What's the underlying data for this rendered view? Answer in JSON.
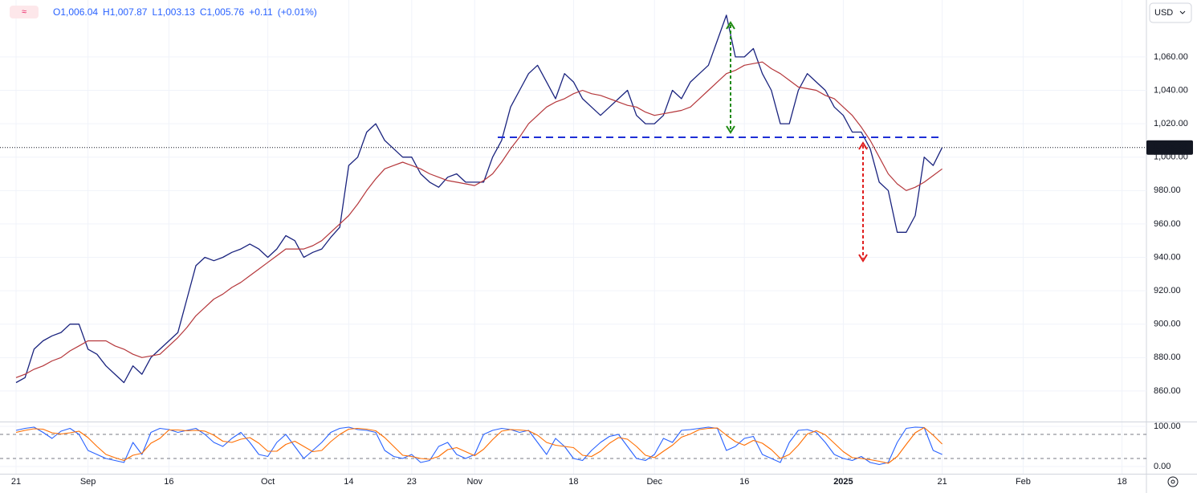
{
  "chart_data": [
    {
      "type": "line",
      "legend": {
        "open": "O1,006.04",
        "high": "H1,007.87",
        "low": "L1,003.13",
        "close": "C1,005.76",
        "change": "+0.11",
        "change_pct": "(+0.01%)"
      },
      "currency": "USD",
      "last_price": {
        "value": 1005.76,
        "label": "1,005.76"
      },
      "xlim": [
        -1.786,
        125.71
      ],
      "ylim": [
        841.7,
        1094.1
      ],
      "yticks": [
        {
          "value": 860,
          "label": "860.00"
        },
        {
          "value": 880,
          "label": "880.00"
        },
        {
          "value": 900,
          "label": "900.00"
        },
        {
          "value": 920,
          "label": "920.00"
        },
        {
          "value": 940,
          "label": "940.00"
        },
        {
          "value": 960,
          "label": "960.00"
        },
        {
          "value": 980,
          "label": "980.00"
        },
        {
          "value": 1000,
          "label": "1,000.00"
        },
        {
          "value": 1020,
          "label": "1,020.00"
        },
        {
          "value": 1040,
          "label": "1,040.00"
        },
        {
          "value": 1060,
          "label": "1,060.00"
        }
      ],
      "grid": true,
      "series": [
        {
          "color": "#1a237e",
          "width": 1.3,
          "values": [
            865,
            868,
            885,
            890,
            893,
            895,
            900,
            900,
            885,
            882,
            875,
            870,
            865,
            875,
            870,
            880,
            885,
            890,
            895,
            915,
            935,
            940,
            938,
            940,
            943,
            945,
            948,
            945,
            940,
            945,
            953,
            950,
            940,
            943,
            945,
            952,
            958,
            995,
            1000,
            1015,
            1020,
            1010,
            1005,
            1000,
            1000,
            990,
            985,
            982,
            988,
            990,
            985,
            985,
            985,
            1000,
            1010,
            1030,
            1040,
            1050,
            1055,
            1045,
            1035,
            1050,
            1045,
            1035,
            1030,
            1025,
            1030,
            1035,
            1040,
            1025,
            1020,
            1020,
            1025,
            1040,
            1035,
            1045,
            1050,
            1055,
            1070,
            1085,
            1060,
            1060,
            1065,
            1050,
            1040,
            1020,
            1020,
            1040,
            1050,
            1045,
            1040,
            1030,
            1025,
            1015,
            1015,
            1005,
            985,
            980,
            955,
            955,
            965,
            1000,
            995,
            1005.76
          ]
        },
        {
          "color": "#b5373b",
          "width": 1.2,
          "values": [
            868,
            870,
            873,
            875,
            878,
            880,
            884,
            887,
            890,
            890,
            890,
            887,
            885,
            882,
            880,
            881,
            882,
            887,
            892,
            898,
            905,
            910,
            915,
            918,
            922,
            925,
            929,
            933,
            937,
            941,
            945,
            945,
            945,
            947,
            950,
            955,
            960,
            965,
            972,
            980,
            987,
            993,
            995,
            997,
            995,
            993,
            990,
            988,
            986,
            985,
            984,
            983,
            986,
            990,
            997,
            1005,
            1012,
            1020,
            1025,
            1030,
            1033,
            1035,
            1038,
            1040,
            1038,
            1037,
            1035,
            1033,
            1031,
            1030,
            1027,
            1025,
            1026,
            1027,
            1028,
            1030,
            1035,
            1040,
            1045,
            1050,
            1052,
            1055,
            1056,
            1057,
            1053,
            1050,
            1046,
            1042,
            1041,
            1040,
            1037,
            1035,
            1030,
            1025,
            1018,
            1010,
            1000,
            990,
            984,
            980,
            982,
            985,
            989,
            993
          ]
        }
      ]
    },
    {
      "type": "line",
      "xlim": [
        -1.786,
        125.71
      ],
      "xticks": [
        {
          "value": 0,
          "label": "21"
        },
        {
          "value": 8,
          "label": "Sep"
        },
        {
          "value": 17,
          "label": "16"
        },
        {
          "value": 28,
          "label": "Oct"
        },
        {
          "value": 37,
          "label": "14"
        },
        {
          "value": 44,
          "label": "23"
        },
        {
          "value": 51,
          "label": "Nov"
        },
        {
          "value": 62,
          "label": "18"
        },
        {
          "value": 71,
          "label": "Dec"
        },
        {
          "value": 81,
          "label": "16"
        },
        {
          "value": 92,
          "label": "2025"
        },
        {
          "value": 103,
          "label": "21"
        },
        {
          "value": 112,
          "label": "Feb"
        },
        {
          "value": 123,
          "label": "18"
        }
      ],
      "ylim": [
        -18,
        110
      ],
      "yticks": [
        {
          "value": 0,
          "label": "0.00"
        },
        {
          "value": 100,
          "label": "100.00"
        }
      ],
      "levels": [
        20,
        80
      ],
      "grid": true,
      "series": [
        {
          "color": "#2962ff",
          "width": 1.1,
          "values": [
            90,
            95,
            98,
            85,
            70,
            88,
            95,
            80,
            40,
            30,
            20,
            15,
            10,
            60,
            30,
            85,
            95,
            92,
            85,
            90,
            95,
            80,
            60,
            50,
            70,
            85,
            60,
            30,
            25,
            60,
            80,
            50,
            20,
            40,
            60,
            85,
            95,
            98,
            92,
            90,
            85,
            40,
            25,
            20,
            30,
            10,
            15,
            50,
            60,
            30,
            20,
            30,
            80,
            90,
            95,
            92,
            85,
            90,
            60,
            30,
            70,
            50,
            20,
            15,
            40,
            60,
            75,
            80,
            50,
            20,
            15,
            30,
            70,
            60,
            90,
            92,
            95,
            98,
            95,
            40,
            50,
            70,
            75,
            30,
            20,
            10,
            60,
            90,
            92,
            85,
            60,
            30,
            20,
            15,
            25,
            10,
            5,
            10,
            60,
            95,
            98,
            97,
            40,
            30
          ]
        },
        {
          "color": "#ff6d00",
          "width": 1.1,
          "values": [
            85,
            90,
            94,
            93,
            84,
            81,
            84,
            88,
            72,
            50,
            30,
            22,
            15,
            28,
            33,
            58,
            70,
            91,
            91,
            89,
            90,
            88,
            78,
            63,
            60,
            68,
            72,
            58,
            38,
            38,
            55,
            63,
            50,
            37,
            40,
            62,
            80,
            93,
            95,
            93,
            89,
            72,
            50,
            28,
            25,
            20,
            18,
            25,
            42,
            47,
            37,
            27,
            43,
            67,
            88,
            92,
            91,
            89,
            78,
            60,
            53,
            50,
            47,
            28,
            25,
            38,
            58,
            72,
            68,
            50,
            28,
            22,
            38,
            53,
            73,
            81,
            92,
            95,
            96,
            78,
            62,
            53,
            65,
            58,
            42,
            20,
            30,
            53,
            81,
            89,
            79,
            58,
            37,
            22,
            20,
            17,
            13,
            8,
            25,
            55,
            84,
            97,
            78,
            56
          ]
        }
      ]
    }
  ]
}
